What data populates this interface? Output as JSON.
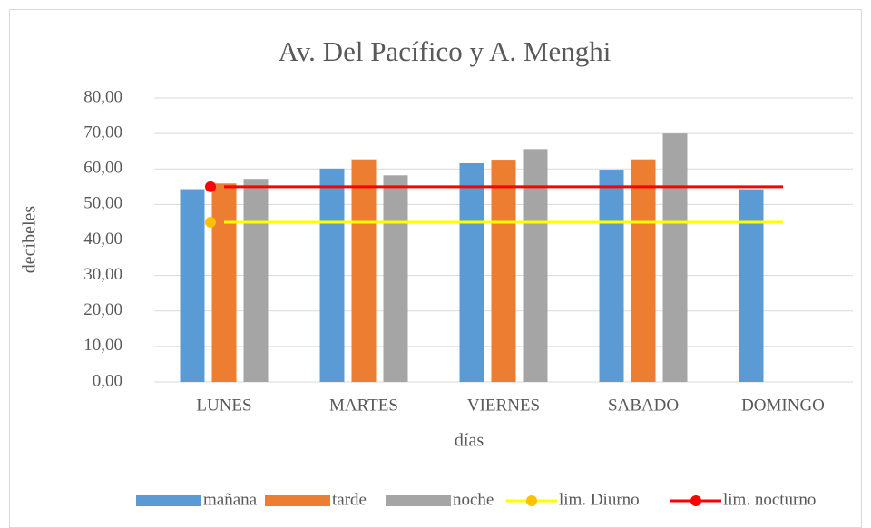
{
  "chart_data": {
    "type": "bar",
    "title": "Av. Del Pacífico y A. Menghi",
    "xlabel": "días",
    "ylabel": "decibeles",
    "categories": [
      "LUNES",
      "MARTES",
      "VIERNES",
      "SABADO",
      "DOMINGO"
    ],
    "series": [
      {
        "name": "mañana",
        "color": "#5b9bd5",
        "values": [
          54.3,
          60.1,
          61.6,
          59.8,
          54.3
        ]
      },
      {
        "name": "tarde",
        "color": "#ed7d31",
        "values": [
          55.9,
          62.7,
          62.6,
          62.7,
          null
        ]
      },
      {
        "name": "noche",
        "color": "#a5a5a5",
        "values": [
          57.2,
          58.2,
          65.6,
          70.0,
          null
        ]
      },
      {
        "name": "lim. Diurno",
        "type": "line",
        "color": "#ffff00",
        "marker_color": "#ffc000",
        "values": [
          45,
          45,
          45,
          45,
          45
        ]
      },
      {
        "name": "lim. nocturno",
        "type": "line",
        "color": "#ff0000",
        "values": [
          55,
          55,
          55,
          55,
          55
        ]
      }
    ],
    "ylim": [
      0,
      80
    ],
    "yticks": [
      {
        "value": 0,
        "label": "0,00"
      },
      {
        "value": 10,
        "label": "10,00"
      },
      {
        "value": 20,
        "label": "20,00"
      },
      {
        "value": 30,
        "label": "30,00"
      },
      {
        "value": 40,
        "label": "40,00"
      },
      {
        "value": 50,
        "label": "50,00"
      },
      {
        "value": 60,
        "label": "60,00"
      },
      {
        "value": 70,
        "label": "70,00"
      },
      {
        "value": 80,
        "label": "80,00"
      }
    ],
    "grid": true,
    "legend": "bottom"
  }
}
